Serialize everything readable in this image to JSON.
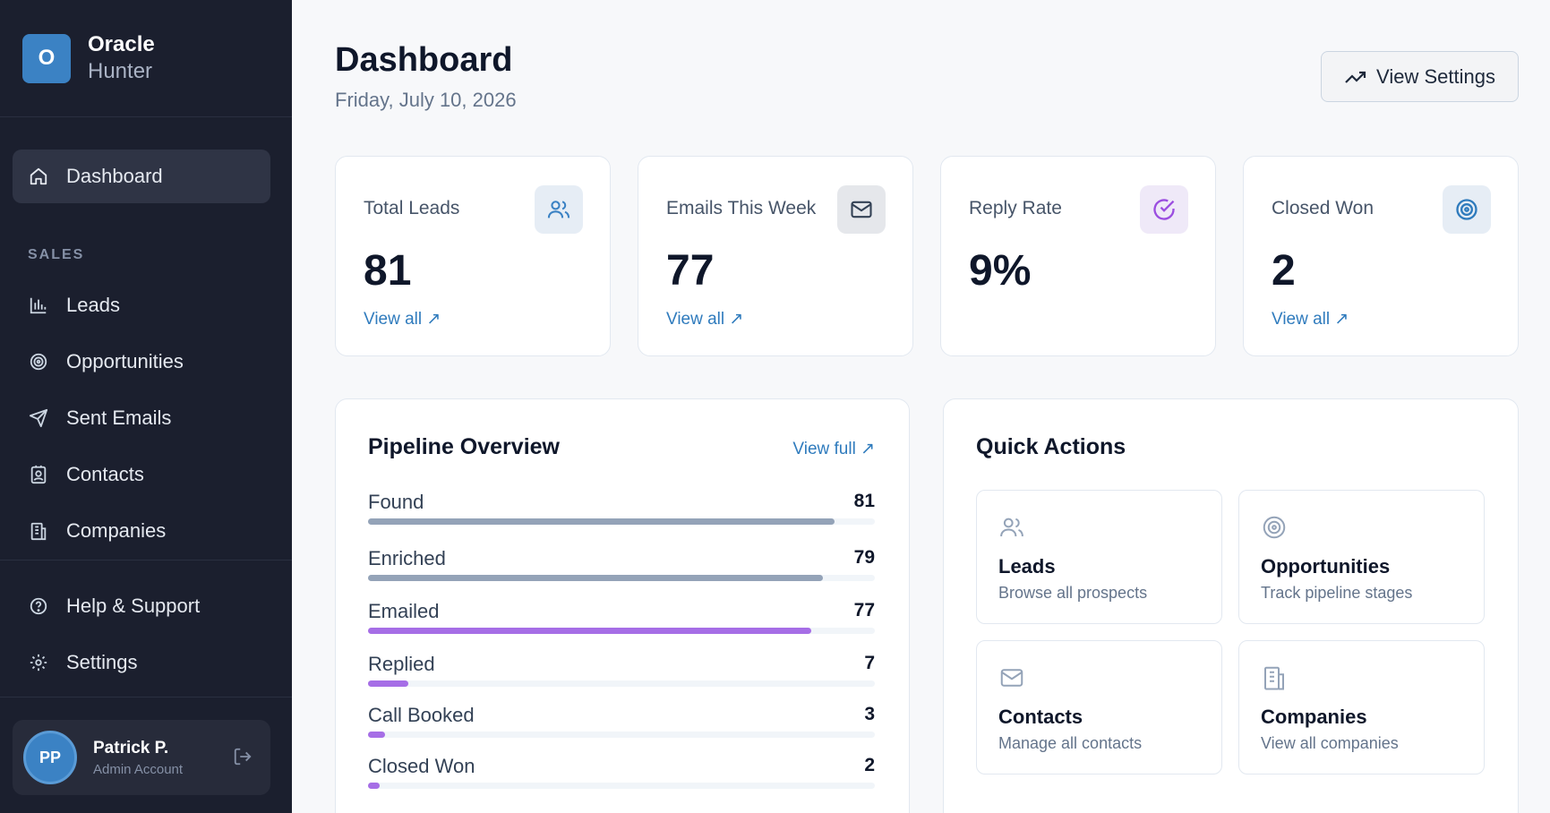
{
  "brand": {
    "logo_letter": "O",
    "name": "Oracle",
    "sub": "Hunter"
  },
  "sidebar": {
    "dashboard": "Dashboard",
    "section_label": "SALES",
    "items": [
      {
        "label": "Leads",
        "icon": "bar-chart-icon"
      },
      {
        "label": "Opportunities",
        "icon": "target-icon"
      },
      {
        "label": "Sent Emails",
        "icon": "send-icon"
      },
      {
        "label": "Contacts",
        "icon": "contact-icon"
      },
      {
        "label": "Companies",
        "icon": "building-icon"
      }
    ],
    "help": "Help & Support",
    "settings": "Settings"
  },
  "user": {
    "initials": "PP",
    "name": "Patrick P.",
    "role": "Admin Account"
  },
  "header": {
    "title": "Dashboard",
    "date": "Friday, July 10, 2026",
    "settings_button": "View Settings"
  },
  "stats": [
    {
      "label": "Total Leads",
      "value": "81",
      "link": "View all ↗",
      "icon": "users-icon",
      "icon_bg": "#e6edf5",
      "icon_color": "#3b82c4"
    },
    {
      "label": "Emails This Week",
      "value": "77",
      "link": "View all ↗",
      "icon": "mail-icon",
      "icon_bg": "#e5e7eb",
      "icon_color": "#334155"
    },
    {
      "label": "Reply Rate",
      "value": "9%",
      "link": "",
      "icon": "check-circle-icon",
      "icon_bg": "#efe9f8",
      "icon_color": "#9b4ee0"
    },
    {
      "label": "Closed Won",
      "value": "2",
      "link": "View all ↗",
      "icon": "target-icon",
      "icon_bg": "#e6edf5",
      "icon_color": "#2f7bbd"
    }
  ],
  "pipeline": {
    "title": "Pipeline Overview",
    "link": "View full ↗",
    "max": 88,
    "stages": [
      {
        "label": "Found",
        "value": 81,
        "color": "#94a3b8"
      },
      {
        "label": "Enriched",
        "value": 79,
        "color": "#94a3b8"
      },
      {
        "label": "Emailed",
        "value": 77,
        "color": "#a66ee6"
      },
      {
        "label": "Replied",
        "value": 7,
        "color": "#a66ee6"
      },
      {
        "label": "Call Booked",
        "value": 3,
        "color": "#a66ee6"
      },
      {
        "label": "Closed Won",
        "value": 2,
        "color": "#a66ee6"
      }
    ]
  },
  "quick_actions": {
    "title": "Quick Actions",
    "items": [
      {
        "title": "Leads",
        "desc": "Browse all prospects",
        "icon": "users-icon"
      },
      {
        "title": "Opportunities",
        "desc": "Track pipeline stages",
        "icon": "target-icon"
      },
      {
        "title": "Contacts",
        "desc": "Manage all contacts",
        "icon": "mail-icon"
      },
      {
        "title": "Companies",
        "desc": "View all companies",
        "icon": "building-icon"
      }
    ]
  }
}
